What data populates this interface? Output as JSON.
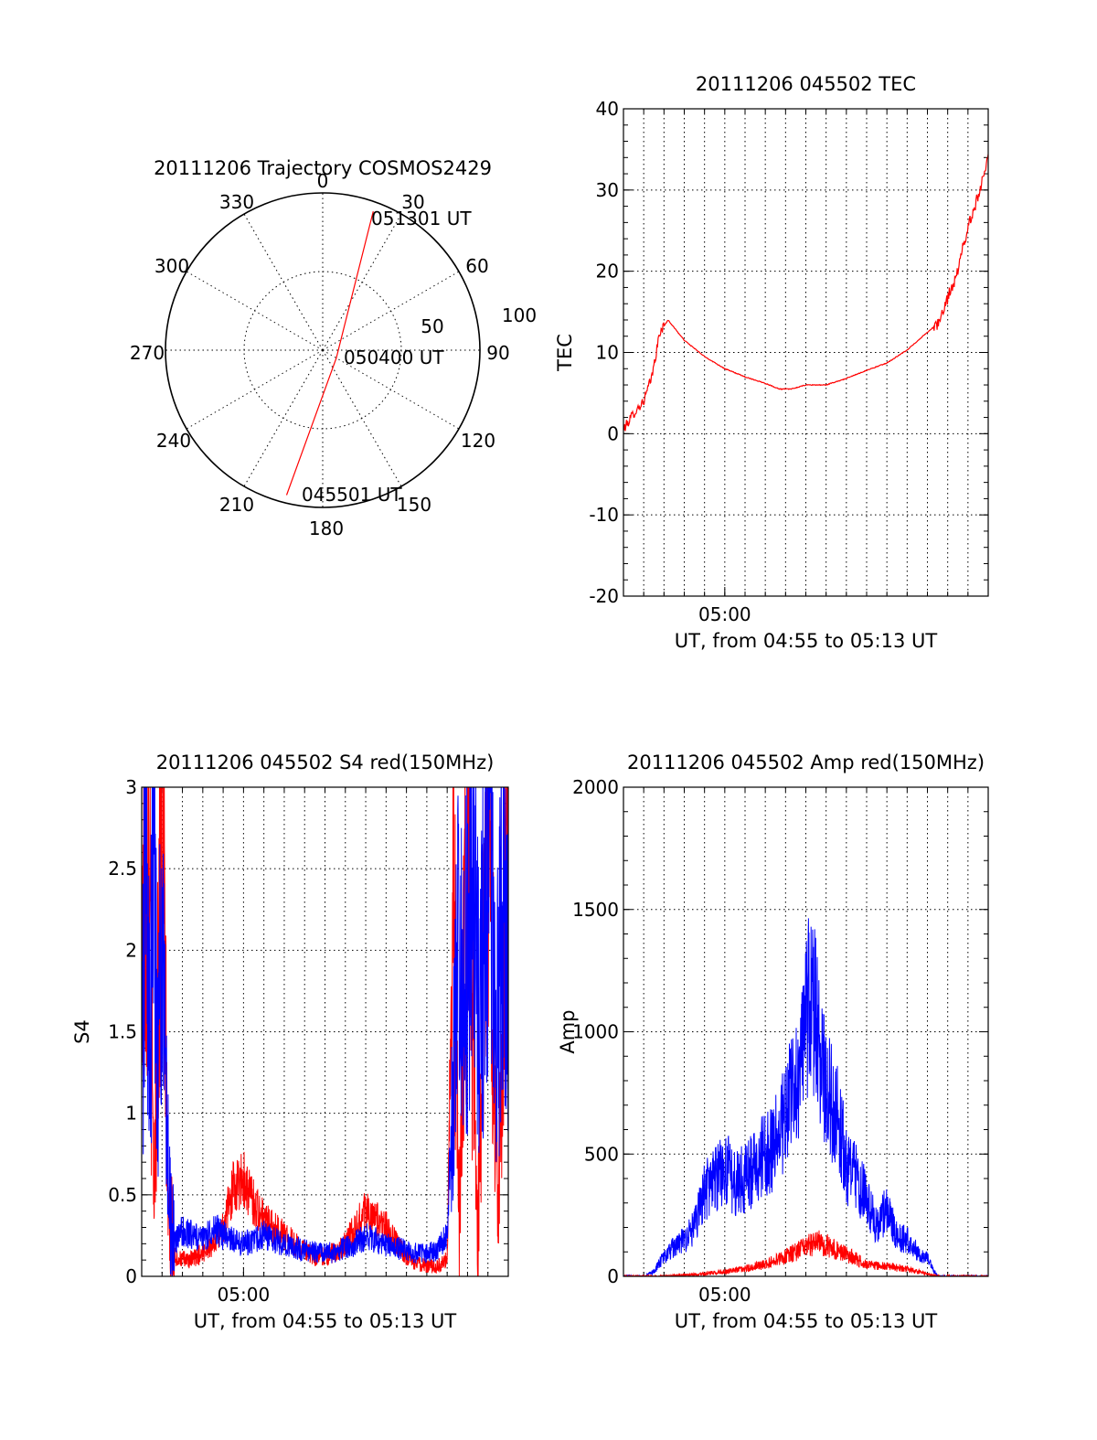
{
  "chart_data": [
    {
      "type": "polar",
      "title": "20111206 Trajectory COSMOS2429",
      "angle_labels": [
        "0",
        "30",
        "60",
        "90",
        "120",
        "150",
        "180",
        "210",
        "240",
        "270",
        "300",
        "330"
      ],
      "radial_labels": [
        "50",
        "100"
      ],
      "series": [
        {
          "color": "#ff0000",
          "points": [
            {
              "azimuth": 194,
              "zenith": 95
            },
            {
              "azimuth": 120,
              "zenith": 10
            },
            {
              "azimuth": 20,
              "zenith": 94
            }
          ]
        }
      ],
      "annotations": [
        {
          "text": "051301 UT",
          "azimuth": 20,
          "zenith": 94
        },
        {
          "text": "050400 UT",
          "azimuth": 120,
          "zenith": 10
        },
        {
          "text": "045501 UT",
          "azimuth": 194,
          "zenith": 95
        }
      ]
    },
    {
      "type": "line",
      "title": "20111206 045502 TEC",
      "xlabel": "UT, from 04:55 to 05:13 UT",
      "ylabel": "TEC",
      "x_ticks": [
        {
          "min": 300,
          "label": "05:00"
        }
      ],
      "xlim": [
        295,
        313
      ],
      "ylim": [
        -20,
        40
      ],
      "y_ticks": [
        -20,
        -10,
        0,
        10,
        20,
        30,
        40
      ],
      "grid": true,
      "series": [
        {
          "color": "#ff0000",
          "x": [
            295.0,
            295.5,
            296.0,
            296.4,
            296.8,
            297.2,
            298.0,
            299.0,
            300.0,
            301.0,
            302.0,
            302.7,
            303.3,
            304.0,
            305.0,
            306.0,
            307.0,
            308.0,
            309.0,
            310.0,
            310.5,
            310.8,
            311.1,
            311.4,
            311.8,
            312.2,
            312.6,
            313.0
          ],
          "y": [
            0.5,
            2.5,
            4.0,
            7.0,
            12.5,
            14.0,
            11.5,
            9.5,
            8.0,
            7.0,
            6.2,
            5.5,
            5.5,
            6.0,
            6.0,
            6.8,
            7.8,
            8.7,
            10.3,
            12.5,
            13.5,
            15.0,
            17.5,
            19.0,
            23.5,
            27.0,
            30.0,
            34.5
          ]
        }
      ]
    },
    {
      "type": "line",
      "title": "20111206 045502 S4 red(150MHz)",
      "xlabel": "UT, from 04:55 to 05:13 UT",
      "ylabel": "S4",
      "x_ticks": [
        {
          "min": 300,
          "label": "05:00"
        }
      ],
      "xlim": [
        295,
        313
      ],
      "ylim": [
        0,
        3
      ],
      "y_ticks": [
        0,
        0.5,
        1,
        1.5,
        2,
        2.5,
        3
      ],
      "y_tick_labels": [
        "0",
        "0.5",
        "1",
        "1.5",
        "2",
        "2.5",
        "3"
      ],
      "grid": true,
      "series": [
        {
          "color": "#ff0000",
          "x": [
            295.0,
            295.3,
            295.6,
            296.0,
            296.3,
            296.6,
            297.0,
            297.5,
            298.0,
            298.5,
            299.0,
            299.5,
            300.0,
            300.5,
            301.0,
            301.5,
            302.0,
            302.5,
            303.0,
            303.5,
            304.0,
            304.5,
            305.0,
            305.5,
            306.0,
            306.5,
            307.0,
            307.5,
            308.0,
            308.5,
            309.0,
            309.5,
            310.0,
            310.3,
            310.6,
            311.0,
            311.5,
            312.0,
            312.5,
            313.0
          ],
          "y": [
            2.0,
            3.0,
            0.5,
            3.0,
            0.4,
            0.12,
            0.1,
            0.1,
            0.15,
            0.2,
            0.3,
            0.55,
            0.6,
            0.45,
            0.35,
            0.3,
            0.25,
            0.2,
            0.15,
            0.12,
            0.12,
            0.15,
            0.2,
            0.3,
            0.4,
            0.35,
            0.3,
            0.2,
            0.12,
            0.08,
            0.06,
            0.06,
            0.1,
            2.5,
            0.3,
            3.0,
            0.2,
            3.0,
            0.3,
            3.0
          ]
        },
        {
          "color": "#0000ff",
          "x": [
            295.0,
            295.2,
            295.4,
            295.6,
            295.8,
            296.0,
            296.2,
            296.4,
            296.6,
            297.0,
            297.5,
            298.0,
            298.5,
            299.0,
            299.5,
            300.0,
            300.5,
            301.0,
            301.5,
            302.0,
            302.5,
            303.0,
            303.5,
            304.0,
            304.5,
            305.0,
            305.5,
            306.0,
            306.5,
            307.0,
            307.5,
            308.0,
            308.5,
            309.0,
            309.5,
            310.0,
            310.3,
            310.5,
            310.8,
            311.2,
            311.6,
            312.0,
            312.4,
            312.8,
            313.0
          ],
          "y": [
            1.0,
            3.0,
            1.2,
            2.8,
            1.5,
            2.0,
            1.0,
            0.4,
            0.2,
            0.28,
            0.25,
            0.22,
            0.3,
            0.25,
            0.22,
            0.2,
            0.22,
            0.25,
            0.22,
            0.2,
            0.18,
            0.16,
            0.15,
            0.14,
            0.15,
            0.18,
            0.2,
            0.24,
            0.22,
            0.2,
            0.18,
            0.16,
            0.14,
            0.14,
            0.16,
            0.25,
            1.2,
            2.0,
            1.6,
            2.6,
            1.4,
            2.8,
            1.5,
            2.4,
            2.0
          ]
        }
      ]
    },
    {
      "type": "line",
      "title": "20111206 045502 Amp red(150MHz)",
      "xlabel": "UT, from 04:55 to 05:13 UT",
      "ylabel": "Amp",
      "x_ticks": [
        {
          "min": 300,
          "label": "05:00"
        }
      ],
      "xlim": [
        295,
        313
      ],
      "ylim": [
        0,
        2000
      ],
      "y_ticks": [
        0,
        500,
        1000,
        1500,
        2000
      ],
      "grid": true,
      "series": [
        {
          "color": "#0000ff",
          "x": [
            295.0,
            296.0,
            296.5,
            297.0,
            297.5,
            298.0,
            298.5,
            299.0,
            299.5,
            300.0,
            300.5,
            301.0,
            301.5,
            302.0,
            302.5,
            303.0,
            303.5,
            304.0,
            304.3,
            304.6,
            305.0,
            305.5,
            306.0,
            306.5,
            307.0,
            307.5,
            308.0,
            308.5,
            309.0,
            309.5,
            310.0,
            310.5,
            311.0,
            312.0,
            313.0
          ],
          "y": [
            0,
            0,
            20,
            80,
            120,
            150,
            200,
            350,
            400,
            450,
            380,
            400,
            450,
            500,
            550,
            650,
            800,
            1000,
            1200,
            950,
            750,
            700,
            450,
            400,
            320,
            200,
            280,
            160,
            150,
            100,
            70,
            0,
            0,
            0,
            0
          ]
        },
        {
          "color": "#ff0000",
          "x": [
            295.0,
            297.0,
            298.0,
            299.0,
            300.0,
            301.0,
            302.0,
            303.0,
            303.5,
            304.0,
            304.5,
            305.0,
            305.5,
            306.0,
            306.5,
            307.0,
            308.0,
            309.0,
            309.5,
            310.0,
            310.5,
            313.0
          ],
          "y": [
            0,
            0,
            5,
            10,
            20,
            30,
            50,
            80,
            100,
            120,
            140,
            130,
            110,
            90,
            70,
            50,
            40,
            30,
            20,
            10,
            0,
            0
          ]
        }
      ]
    }
  ]
}
